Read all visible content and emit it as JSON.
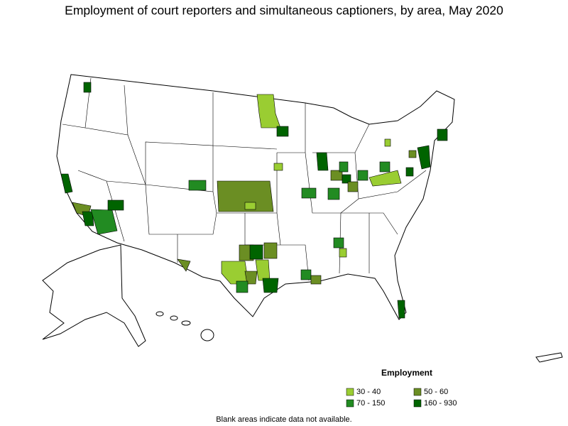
{
  "title": "Employment of court reporters and simultaneous captioners, by area, May 2020",
  "legend": {
    "title": "Employment",
    "items": [
      {
        "label": "30 - 40",
        "color": "#9acd32"
      },
      {
        "label": "50 - 60",
        "color": "#6b8e23"
      },
      {
        "label": "70 - 150",
        "color": "#228b22"
      },
      {
        "label": "160 - 930",
        "color": "#006400"
      }
    ]
  },
  "note": "Blank areas indicate data not available."
}
